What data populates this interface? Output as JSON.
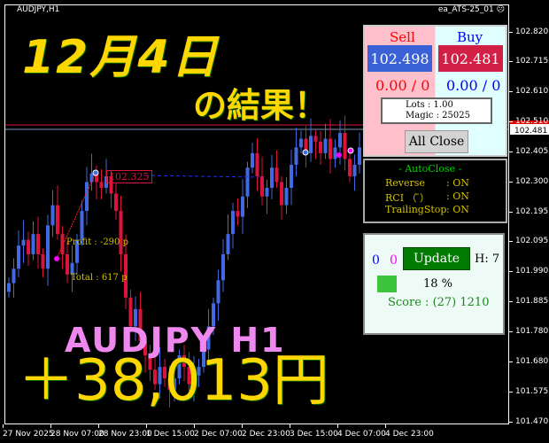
{
  "chart": {
    "symbol": "AUDJPY,H1",
    "ea_name": "ea_ATS-25_01",
    "ea_status_icon": "sad-face-icon",
    "price_axis": [
      "102.820",
      "102.715",
      "102.610",
      "102.510",
      "102.405",
      "102.300",
      "102.195",
      "102.095",
      "101.990",
      "101.885",
      "101.780",
      "101.680",
      "101.575",
      "101.470"
    ],
    "bid_label": "102.481",
    "time_axis": [
      "27 Nov 2025",
      "28 Nov 07:00",
      "28 Nov 23:00",
      "1 Dec 15:00",
      "2 Dec 07:00",
      "2 Dec 23:00",
      "3 Dec 15:00",
      "4 Dec 07:00",
      "4 Dec 23:00"
    ],
    "trade_price_label": "102.325",
    "profit_label": "Profit : -290 p",
    "total_label": "Total : 617 p",
    "colors": {
      "bull": "#4169e1",
      "bear": "#dc143c",
      "background": "#000000"
    }
  },
  "chart_data": {
    "type": "candlestick",
    "closes": [
      101.95,
      102.0,
      102.08,
      102.1,
      102.05,
      102.12,
      102.05,
      102.0,
      102.15,
      102.22,
      102.12,
      102.05,
      101.98,
      102.02,
      102.1,
      102.2,
      102.3,
      102.33,
      102.3,
      102.28,
      102.32,
      102.26,
      102.2,
      102.05,
      101.9,
      101.8,
      101.86,
      101.75,
      101.7,
      101.65,
      101.6,
      101.66,
      101.62,
      101.58,
      101.62,
      101.7,
      101.66,
      101.6,
      101.63,
      101.66,
      101.72,
      101.8,
      101.88,
      101.96,
      102.05,
      102.12,
      102.2,
      102.18,
      102.25,
      102.35,
      102.4,
      102.32,
      102.25,
      102.28,
      102.35,
      102.3,
      102.22,
      102.28,
      102.36,
      102.42,
      102.45,
      102.4,
      102.46,
      102.44,
      102.4,
      102.45,
      102.38,
      102.42,
      102.47,
      102.38,
      102.32,
      102.36,
      102.42
    ],
    "ylim": [
      101.47,
      102.82
    ]
  },
  "trade_panel": {
    "sell_label": "Sell",
    "buy_label": "Buy",
    "sell_price": "102.498",
    "buy_price": "102.481",
    "sell_pl": "0.00 / 0",
    "buy_pl": "0.00 / 0",
    "lots": "Lots   : 1.00",
    "magic": "Magic : 25025",
    "all_close_label": "All Close"
  },
  "autoclose": {
    "title": "- AutoClose -",
    "rows": [
      {
        "label": "Reverse",
        "value": ": ON"
      },
      {
        "label": "RCI （ ̄）",
        "value": ": ON"
      },
      {
        "label": "TrailingStop",
        "value": ": ON"
      }
    ]
  },
  "update_panel": {
    "count_blue": "0",
    "count_magenta": "0",
    "update_label": "Update",
    "h_label": "H: 7",
    "percent": "18 %",
    "score": "Score : (27) 1210"
  },
  "overlay": {
    "date_title": "12月4日",
    "result_title": "の結果！",
    "pair_title": "AUDJPY H1",
    "profit_amount": "＋38,013円"
  }
}
